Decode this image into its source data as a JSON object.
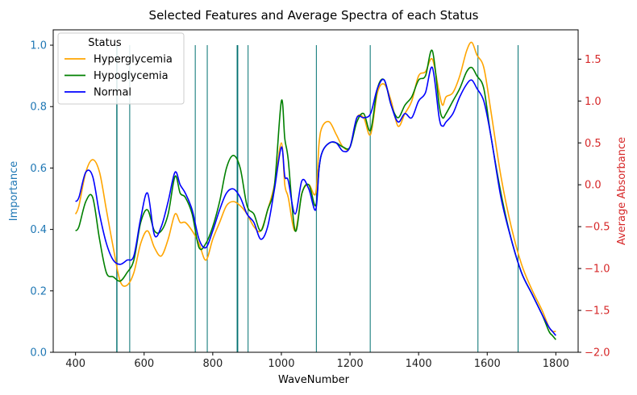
{
  "chart_data": {
    "type": "line",
    "title": "Selected Features and Average Spectra of each Status",
    "xlabel": "WaveNumber",
    "ylabel_left": "Importance",
    "ylabel_right": "Average Absorbance",
    "xlim": [
      335,
      1865
    ],
    "ylim_left": [
      0.0,
      1.05
    ],
    "ylim_right": [
      -2.0,
      1.85
    ],
    "x_ticks": [
      400,
      600,
      800,
      1000,
      1200,
      1400,
      1600,
      1800
    ],
    "y_left_ticks": [
      0.0,
      0.2,
      0.4,
      0.6,
      0.8,
      1.0
    ],
    "y_right_ticks": [
      -2.0,
      -1.5,
      -1.0,
      -0.5,
      0.0,
      0.5,
      1.0,
      1.5
    ],
    "grid": false,
    "legend": {
      "title": "Status",
      "placement": "top-left"
    },
    "colors": {
      "left_axis": "#1f77b4",
      "right_axis": "#d62728",
      "feature_lines": "#007070",
      "Hyperglycemia": "#ffa500",
      "Hypoglycemia": "#008000",
      "Normal": "#0000ff"
    },
    "feature_importance": [
      {
        "x": 520,
        "importance": 1.0
      },
      {
        "x": 521,
        "importance": 1.0
      },
      {
        "x": 558,
        "importance": 1.0
      },
      {
        "x": 749,
        "importance": 1.0
      },
      {
        "x": 784,
        "importance": 1.0
      },
      {
        "x": 871,
        "importance": 1.0
      },
      {
        "x": 873,
        "importance": 1.0
      },
      {
        "x": 903,
        "importance": 1.0
      },
      {
        "x": 1102,
        "importance": 1.0
      },
      {
        "x": 1259,
        "importance": 1.0
      },
      {
        "x": 1573,
        "importance": 1.0
      },
      {
        "x": 1690,
        "importance": 1.0
      }
    ],
    "series": [
      {
        "name": "Hyperglycemia",
        "x": [
          400,
          410,
          430,
          450,
          470,
          490,
          510,
          530,
          550,
          570,
          590,
          610,
          630,
          650,
          670,
          690,
          705,
          720,
          740,
          760,
          780,
          800,
          820,
          840,
          860,
          880,
          900,
          920,
          940,
          960,
          980,
          1000,
          1010,
          1020,
          1040,
          1060,
          1080,
          1100,
          1110,
          1120,
          1140,
          1160,
          1180,
          1200,
          1220,
          1240,
          1260,
          1280,
          1300,
          1320,
          1340,
          1360,
          1380,
          1400,
          1420,
          1440,
          1460,
          1470,
          1480,
          1500,
          1520,
          1540,
          1555,
          1570,
          1590,
          1610,
          1640,
          1670,
          1700,
          1730,
          1760,
          1780,
          1790,
          1800
        ],
        "y": [
          -0.35,
          -0.25,
          0.15,
          0.3,
          0.15,
          -0.3,
          -0.75,
          -1.15,
          -1.2,
          -1.05,
          -0.7,
          -0.55,
          -0.75,
          -0.85,
          -0.65,
          -0.35,
          -0.45,
          -0.45,
          -0.55,
          -0.7,
          -0.9,
          -0.65,
          -0.45,
          -0.25,
          -0.2,
          -0.25,
          -0.35,
          -0.5,
          -0.55,
          -0.3,
          0.0,
          0.5,
          0.0,
          -0.15,
          -0.55,
          -0.1,
          0.0,
          -0.1,
          0.5,
          0.7,
          0.75,
          0.6,
          0.45,
          0.45,
          0.8,
          0.8,
          0.6,
          1.1,
          1.2,
          1.0,
          0.7,
          0.85,
          1.0,
          1.3,
          1.35,
          1.5,
          1.1,
          0.95,
          1.05,
          1.1,
          1.3,
          1.6,
          1.7,
          1.55,
          1.4,
          0.9,
          0.1,
          -0.5,
          -0.95,
          -1.25,
          -1.5,
          -1.7,
          -1.75,
          -1.75
        ]
      },
      {
        "name": "Hypoglycemia",
        "x": [
          400,
          410,
          430,
          450,
          470,
          490,
          510,
          530,
          550,
          570,
          590,
          610,
          630,
          650,
          670,
          690,
          705,
          720,
          740,
          760,
          780,
          800,
          820,
          840,
          860,
          880,
          900,
          920,
          940,
          960,
          980,
          1000,
          1010,
          1020,
          1040,
          1060,
          1080,
          1100,
          1110,
          1120,
          1140,
          1160,
          1180,
          1200,
          1220,
          1240,
          1260,
          1280,
          1300,
          1320,
          1340,
          1360,
          1380,
          1400,
          1420,
          1440,
          1460,
          1470,
          1480,
          1500,
          1520,
          1540,
          1555,
          1570,
          1590,
          1610,
          1640,
          1670,
          1700,
          1730,
          1760,
          1780,
          1790,
          1800
        ],
        "y": [
          -0.55,
          -0.5,
          -0.2,
          -0.15,
          -0.65,
          -1.05,
          -1.1,
          -1.15,
          -1.05,
          -0.9,
          -0.45,
          -0.3,
          -0.55,
          -0.55,
          -0.35,
          0.1,
          -0.1,
          -0.15,
          -0.35,
          -0.75,
          -0.7,
          -0.5,
          -0.2,
          0.2,
          0.35,
          0.2,
          -0.25,
          -0.35,
          -0.55,
          -0.3,
          0.0,
          1.0,
          0.55,
          0.3,
          -0.55,
          -0.1,
          0.0,
          -0.25,
          0.2,
          0.4,
          0.5,
          0.5,
          0.45,
          0.45,
          0.75,
          0.85,
          0.65,
          1.15,
          1.25,
          0.95,
          0.8,
          0.95,
          1.05,
          1.25,
          1.3,
          1.6,
          0.95,
          0.8,
          0.85,
          1.0,
          1.15,
          1.35,
          1.4,
          1.3,
          1.15,
          0.6,
          -0.1,
          -0.65,
          -1.05,
          -1.3,
          -1.55,
          -1.75,
          -1.8,
          -1.85
        ]
      },
      {
        "name": "Normal",
        "x": [
          400,
          410,
          430,
          450,
          470,
          490,
          510,
          530,
          550,
          570,
          590,
          610,
          630,
          650,
          670,
          690,
          705,
          720,
          740,
          760,
          780,
          800,
          820,
          840,
          860,
          880,
          900,
          920,
          940,
          960,
          980,
          1000,
          1010,
          1020,
          1040,
          1060,
          1080,
          1100,
          1110,
          1120,
          1140,
          1160,
          1180,
          1200,
          1220,
          1240,
          1260,
          1280,
          1300,
          1320,
          1340,
          1360,
          1380,
          1400,
          1420,
          1440,
          1460,
          1470,
          1480,
          1500,
          1520,
          1540,
          1555,
          1570,
          1590,
          1610,
          1640,
          1670,
          1700,
          1730,
          1760,
          1780,
          1790,
          1800
        ],
        "y": [
          -0.2,
          -0.15,
          0.15,
          0.1,
          -0.35,
          -0.7,
          -0.9,
          -0.95,
          -0.9,
          -0.85,
          -0.4,
          -0.1,
          -0.6,
          -0.5,
          -0.2,
          0.15,
          0.0,
          -0.1,
          -0.3,
          -0.65,
          -0.75,
          -0.55,
          -0.3,
          -0.1,
          -0.05,
          -0.15,
          -0.35,
          -0.45,
          -0.65,
          -0.5,
          -0.05,
          0.45,
          0.1,
          0.05,
          -0.35,
          0.05,
          -0.05,
          -0.3,
          0.2,
          0.4,
          0.5,
          0.5,
          0.4,
          0.45,
          0.8,
          0.8,
          0.85,
          1.15,
          1.25,
          0.95,
          0.75,
          0.85,
          0.8,
          1.0,
          1.1,
          1.4,
          0.8,
          0.7,
          0.75,
          0.85,
          1.05,
          1.2,
          1.25,
          1.15,
          1.0,
          0.6,
          -0.15,
          -0.65,
          -1.05,
          -1.3,
          -1.55,
          -1.7,
          -1.75,
          -1.8
        ]
      }
    ]
  }
}
